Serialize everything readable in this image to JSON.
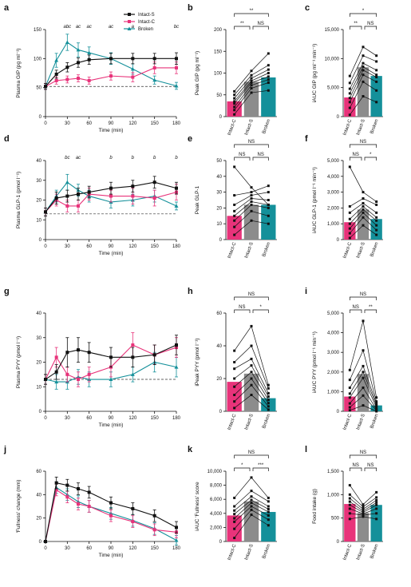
{
  "colors": {
    "intact_s": "#111111",
    "intact_c": "#e8337a",
    "broken": "#14909a",
    "baseline": "#333333"
  },
  "legend": [
    "Intact-S",
    "Intact-C",
    "Broken"
  ],
  "chart_data": [
    {
      "panel": "a",
      "type": "line",
      "xlabel": "Time (min)",
      "ylabel": "Plasma GIP (pg ml⁻¹)",
      "xlim": [
        0,
        180
      ],
      "ylim": [
        0,
        150
      ],
      "xticks": [
        0,
        30,
        60,
        90,
        120,
        150,
        180
      ],
      "yticks": [
        0,
        50,
        100,
        150
      ],
      "baseline": 52,
      "x": [
        0,
        15,
        30,
        45,
        60,
        90,
        120,
        150,
        180
      ],
      "series": [
        {
          "name": "Intact-S",
          "values": [
            52,
            73,
            85,
            93,
            98,
            100,
            100,
            100,
            100
          ],
          "err": [
            5,
            7,
            8,
            8,
            8,
            9,
            9,
            9,
            10
          ]
        },
        {
          "name": "Intact-C",
          "values": [
            52,
            62,
            64,
            66,
            62,
            70,
            68,
            84,
            84
          ],
          "err": [
            5,
            6,
            6,
            6,
            6,
            7,
            8,
            10,
            10
          ]
        },
        {
          "name": "Broken",
          "values": [
            52,
            97,
            128,
            115,
            110,
            100,
            82,
            63,
            53
          ],
          "err": [
            5,
            12,
            14,
            12,
            10,
            10,
            9,
            7,
            6
          ]
        }
      ],
      "annotations": [
        {
          "x": 30,
          "text": "abc"
        },
        {
          "x": 45,
          "text": "ac"
        },
        {
          "x": 60,
          "text": "ac"
        },
        {
          "x": 90,
          "text": "ac"
        },
        {
          "x": 120,
          "text": "a"
        },
        {
          "x": 180,
          "text": "bc"
        }
      ]
    },
    {
      "panel": "b",
      "type": "bar",
      "ylabel": "Peak GIP (pg ml⁻¹)",
      "ylim": [
        0,
        200
      ],
      "yticks": [
        0,
        50,
        100,
        150,
        200
      ],
      "categories": [
        "Intact-C",
        "Intact-S",
        "Broken"
      ],
      "values": [
        35,
        80,
        90
      ],
      "subjects": [
        [
          5,
          55,
          60
        ],
        [
          15,
          65,
          78
        ],
        [
          22,
          72,
          85
        ],
        [
          30,
          78,
          92
        ],
        [
          35,
          82,
          100
        ],
        [
          42,
          88,
          108
        ],
        [
          50,
          95,
          118
        ],
        [
          58,
          105,
          145
        ]
      ],
      "sig": [
        {
          "a": 0,
          "b": 2,
          "text": "**",
          "level": 2
        },
        {
          "a": 0,
          "b": 1,
          "text": "**",
          "level": 1
        },
        {
          "a": 1,
          "b": 2,
          "text": "NS",
          "level": 1
        }
      ]
    },
    {
      "panel": "c",
      "type": "bar",
      "ylabel": "iAUC GIP (pg ml⁻¹ min⁻¹)",
      "ylim": [
        0,
        15000
      ],
      "yticks": [
        0,
        5000,
        10000,
        15000
      ],
      "categories": [
        "Intact-C",
        "Intact-S",
        "Broken"
      ],
      "values": [
        3300,
        8500,
        7000
      ],
      "subjects": [
        [
          300,
          3500,
          2500
        ],
        [
          1500,
          6000,
          4500
        ],
        [
          2500,
          7200,
          6000
        ],
        [
          3200,
          8000,
          6800
        ],
        [
          4000,
          8600,
          7200
        ],
        [
          4800,
          9200,
          8000
        ],
        [
          5800,
          10500,
          9500
        ],
        [
          7000,
          12000,
          10500
        ]
      ],
      "sig": [
        {
          "a": 0,
          "b": 2,
          "text": "*",
          "level": 2
        },
        {
          "a": 0,
          "b": 1,
          "text": "**",
          "level": 1
        },
        {
          "a": 1,
          "b": 2,
          "text": "NS",
          "level": 1
        }
      ]
    },
    {
      "panel": "d",
      "type": "line",
      "xlabel": "Time (min)",
      "ylabel": "Plasma GLP-1 (pmol l⁻¹)",
      "xlim": [
        0,
        180
      ],
      "ylim": [
        0,
        40
      ],
      "xticks": [
        0,
        30,
        60,
        90,
        120,
        150,
        180
      ],
      "yticks": [
        0,
        10,
        20,
        30,
        40
      ],
      "baseline": 13,
      "x": [
        0,
        15,
        30,
        45,
        60,
        90,
        120,
        150,
        180
      ],
      "series": [
        {
          "name": "Intact-S",
          "values": [
            14,
            21,
            22,
            23,
            24,
            26,
            27,
            29,
            26
          ],
          "err": [
            2,
            3,
            3,
            3,
            3,
            3,
            3,
            3,
            3
          ]
        },
        {
          "name": "Intact-C",
          "values": [
            14,
            20,
            17,
            17,
            23,
            22,
            22,
            21,
            24
          ],
          "err": [
            2,
            3,
            3,
            3,
            3,
            3,
            4,
            4,
            4
          ]
        },
        {
          "name": "Broken",
          "values": [
            14,
            22,
            29,
            25,
            22,
            19,
            20,
            22,
            17
          ],
          "err": [
            2,
            3,
            4,
            3,
            3,
            3,
            3,
            3,
            2
          ]
        }
      ],
      "annotations": [
        {
          "x": 30,
          "text": "bc"
        },
        {
          "x": 45,
          "text": "ac"
        },
        {
          "x": 90,
          "text": "b"
        },
        {
          "x": 120,
          "text": "b"
        },
        {
          "x": 150,
          "text": "b"
        },
        {
          "x": 180,
          "text": "b"
        }
      ]
    },
    {
      "panel": "e",
      "type": "bar",
      "ylabel": "Peak GLP-1",
      "ylim": [
        0,
        50
      ],
      "yticks": [
        0,
        10,
        20,
        30,
        40,
        50
      ],
      "categories": [
        "Intact-C",
        "Intact-S",
        "Broken"
      ],
      "values": [
        15,
        22,
        22
      ],
      "subjects": [
        [
          3,
          12,
          10
        ],
        [
          8,
          18,
          15
        ],
        [
          12,
          22,
          20
        ],
        [
          15,
          24,
          22
        ],
        [
          18,
          26,
          25
        ],
        [
          22,
          28,
          30
        ],
        [
          28,
          30,
          34
        ],
        [
          46,
          33,
          22
        ]
      ],
      "sig": [
        {
          "a": 0,
          "b": 2,
          "text": "NS",
          "level": 2
        },
        {
          "a": 0,
          "b": 1,
          "text": "NS",
          "level": 1
        },
        {
          "a": 1,
          "b": 2,
          "text": "NS",
          "level": 1
        }
      ]
    },
    {
      "panel": "f",
      "type": "bar",
      "ylabel": "iAUC GLP-1 (pmol l⁻¹ min⁻¹)",
      "ylim": [
        0,
        5000
      ],
      "yticks": [
        0,
        1000,
        2000,
        3000,
        4000,
        5000
      ],
      "categories": [
        "Intact-C",
        "Intact-S",
        "Broken"
      ],
      "values": [
        1100,
        1900,
        1300
      ],
      "subjects": [
        [
          100,
          900,
          300
        ],
        [
          400,
          1400,
          600
        ],
        [
          700,
          1700,
          900
        ],
        [
          1000,
          1900,
          1200
        ],
        [
          1300,
          2100,
          1400
        ],
        [
          1700,
          2300,
          1700
        ],
        [
          2100,
          2600,
          2200
        ],
        [
          4600,
          3000,
          2400
        ]
      ],
      "sig": [
        {
          "a": 0,
          "b": 2,
          "text": "NS",
          "level": 2
        },
        {
          "a": 0,
          "b": 1,
          "text": "NS",
          "level": 1
        },
        {
          "a": 1,
          "b": 2,
          "text": "*",
          "level": 1
        }
      ]
    },
    {
      "panel": "g",
      "type": "line",
      "xlabel": "Time (min)",
      "ylabel": "Plasma PYY (pmol l⁻¹)",
      "xlim": [
        0,
        180
      ],
      "ylim": [
        0,
        40
      ],
      "xticks": [
        0,
        30,
        60,
        90,
        120,
        150,
        180
      ],
      "yticks": [
        0,
        10,
        20,
        30,
        40
      ],
      "baseline": 13,
      "x": [
        0,
        15,
        30,
        45,
        60,
        90,
        120,
        150,
        180
      ],
      "series": [
        {
          "name": "Intact-S",
          "values": [
            13,
            16,
            24,
            25,
            24,
            22,
            22,
            23,
            27
          ],
          "err": [
            2,
            3,
            6,
            5,
            4,
            4,
            4,
            4,
            4
          ]
        },
        {
          "name": "Intact-C",
          "values": [
            13,
            22,
            15,
            13,
            15,
            18,
            27,
            23,
            26
          ],
          "err": [
            2,
            4,
            3,
            3,
            3,
            4,
            5,
            4,
            4
          ]
        },
        {
          "name": "Broken",
          "values": [
            13,
            12,
            12,
            14,
            13,
            13,
            15,
            20,
            18
          ],
          "err": [
            2,
            3,
            3,
            3,
            3,
            3,
            3,
            4,
            4
          ]
        }
      ]
    },
    {
      "panel": "h",
      "type": "bar",
      "ylabel": "iPeak PYY (pmol l⁻¹)",
      "ylim": [
        0,
        60
      ],
      "yticks": [
        0,
        20,
        40,
        60
      ],
      "categories": [
        "Intact-C",
        "Intact-S",
        "Broken"
      ],
      "values": [
        18,
        23,
        8
      ],
      "subjects": [
        [
          2,
          10,
          1
        ],
        [
          6,
          16,
          3
        ],
        [
          10,
          20,
          5
        ],
        [
          15,
          24,
          7
        ],
        [
          20,
          28,
          9
        ],
        [
          26,
          32,
          11
        ],
        [
          30,
          40,
          14
        ],
        [
          37,
          52,
          16
        ]
      ],
      "sig": [
        {
          "a": 0,
          "b": 2,
          "text": "NS",
          "level": 2
        },
        {
          "a": 0,
          "b": 1,
          "text": "NS",
          "level": 1
        },
        {
          "a": 1,
          "b": 2,
          "text": "*",
          "level": 1
        }
      ]
    },
    {
      "panel": "i",
      "type": "bar",
      "ylabel": "iAUC PYY (pmol l⁻¹ min⁻¹)",
      "ylim": [
        0,
        5000
      ],
      "yticks": [
        0,
        1000,
        2000,
        3000,
        4000,
        5000
      ],
      "categories": [
        "Intact-C",
        "Intact-S",
        "Broken"
      ],
      "values": [
        750,
        1900,
        300
      ],
      "subjects": [
        [
          50,
          300,
          0
        ],
        [
          200,
          800,
          50
        ],
        [
          400,
          1200,
          100
        ],
        [
          700,
          1700,
          200
        ],
        [
          900,
          2000,
          300
        ],
        [
          1200,
          2300,
          400
        ],
        [
          1600,
          3100,
          500
        ],
        [
          2100,
          4600,
          700
        ]
      ],
      "sig": [
        {
          "a": 0,
          "b": 2,
          "text": "NS",
          "level": 2
        },
        {
          "a": 0,
          "b": 1,
          "text": "NS",
          "level": 1
        },
        {
          "a": 1,
          "b": 2,
          "text": "**",
          "level": 1
        }
      ]
    },
    {
      "panel": "j",
      "type": "line",
      "xlabel": "Time (min)",
      "ylabel": "'Fullness' change (mm)",
      "xlim": [
        0,
        180
      ],
      "ylim": [
        0,
        60
      ],
      "xticks": [
        0,
        30,
        60,
        90,
        120,
        150,
        180
      ],
      "yticks": [
        0,
        20,
        40,
        60
      ],
      "x": [
        0,
        15,
        30,
        45,
        60,
        90,
        120,
        150,
        180
      ],
      "series": [
        {
          "name": "Intact-S",
          "values": [
            0,
            50,
            48,
            45,
            42,
            33,
            28,
            22,
            12
          ],
          "err": [
            0,
            5,
            5,
            5,
            5,
            5,
            5,
            5,
            5
          ]
        },
        {
          "name": "Intact-C",
          "values": [
            0,
            44,
            38,
            32,
            30,
            22,
            17,
            10,
            8
          ],
          "err": [
            0,
            5,
            5,
            5,
            5,
            5,
            5,
            5,
            5
          ]
        },
        {
          "name": "Broken",
          "values": [
            0,
            46,
            40,
            34,
            30,
            24,
            18,
            11,
            1
          ],
          "err": [
            0,
            5,
            5,
            5,
            5,
            5,
            5,
            5,
            4
          ]
        }
      ]
    },
    {
      "panel": "k",
      "type": "bar",
      "ylabel": "iAUC 'Fullness' score",
      "ylim": [
        0,
        10000
      ],
      "yticks": [
        0,
        2000,
        4000,
        6000,
        8000,
        10000
      ],
      "categories": [
        "Intact-C",
        "Intact-S",
        "Broken"
      ],
      "values": [
        3700,
        5700,
        4200
      ],
      "subjects": [
        [
          500,
          3800,
          2300
        ],
        [
          1800,
          4500,
          3100
        ],
        [
          2800,
          5000,
          3700
        ],
        [
          3300,
          5500,
          4200
        ],
        [
          3900,
          5900,
          4600
        ],
        [
          4400,
          6400,
          5000
        ],
        [
          5000,
          7200,
          5700
        ],
        [
          6200,
          9100,
          6200
        ]
      ],
      "sig": [
        {
          "a": 0,
          "b": 2,
          "text": "NS",
          "level": 2
        },
        {
          "a": 0,
          "b": 1,
          "text": "*",
          "level": 1
        },
        {
          "a": 1,
          "b": 2,
          "text": "***",
          "level": 1
        }
      ]
    },
    {
      "panel": "l",
      "type": "bar",
      "ylabel": "Food intake (g)",
      "ylim": [
        0,
        1500
      ],
      "yticks": [
        0,
        500,
        1000,
        1500
      ],
      "categories": [
        "Intact-C",
        "Intact-S",
        "Broken"
      ],
      "values": [
        800,
        610,
        780
      ],
      "subjects": [
        [
          480,
          530,
          480
        ],
        [
          600,
          560,
          600
        ],
        [
          700,
          590,
          700
        ],
        [
          780,
          620,
          780
        ],
        [
          850,
          650,
          830
        ],
        [
          920,
          690,
          880
        ],
        [
          1000,
          740,
          940
        ],
        [
          1200,
          790,
          1050
        ]
      ],
      "sig": [
        {
          "a": 0,
          "b": 2,
          "text": "NS",
          "level": 2
        },
        {
          "a": 0,
          "b": 1,
          "text": "NS",
          "level": 1
        },
        {
          "a": 1,
          "b": 2,
          "text": "NS",
          "level": 1
        }
      ]
    }
  ]
}
